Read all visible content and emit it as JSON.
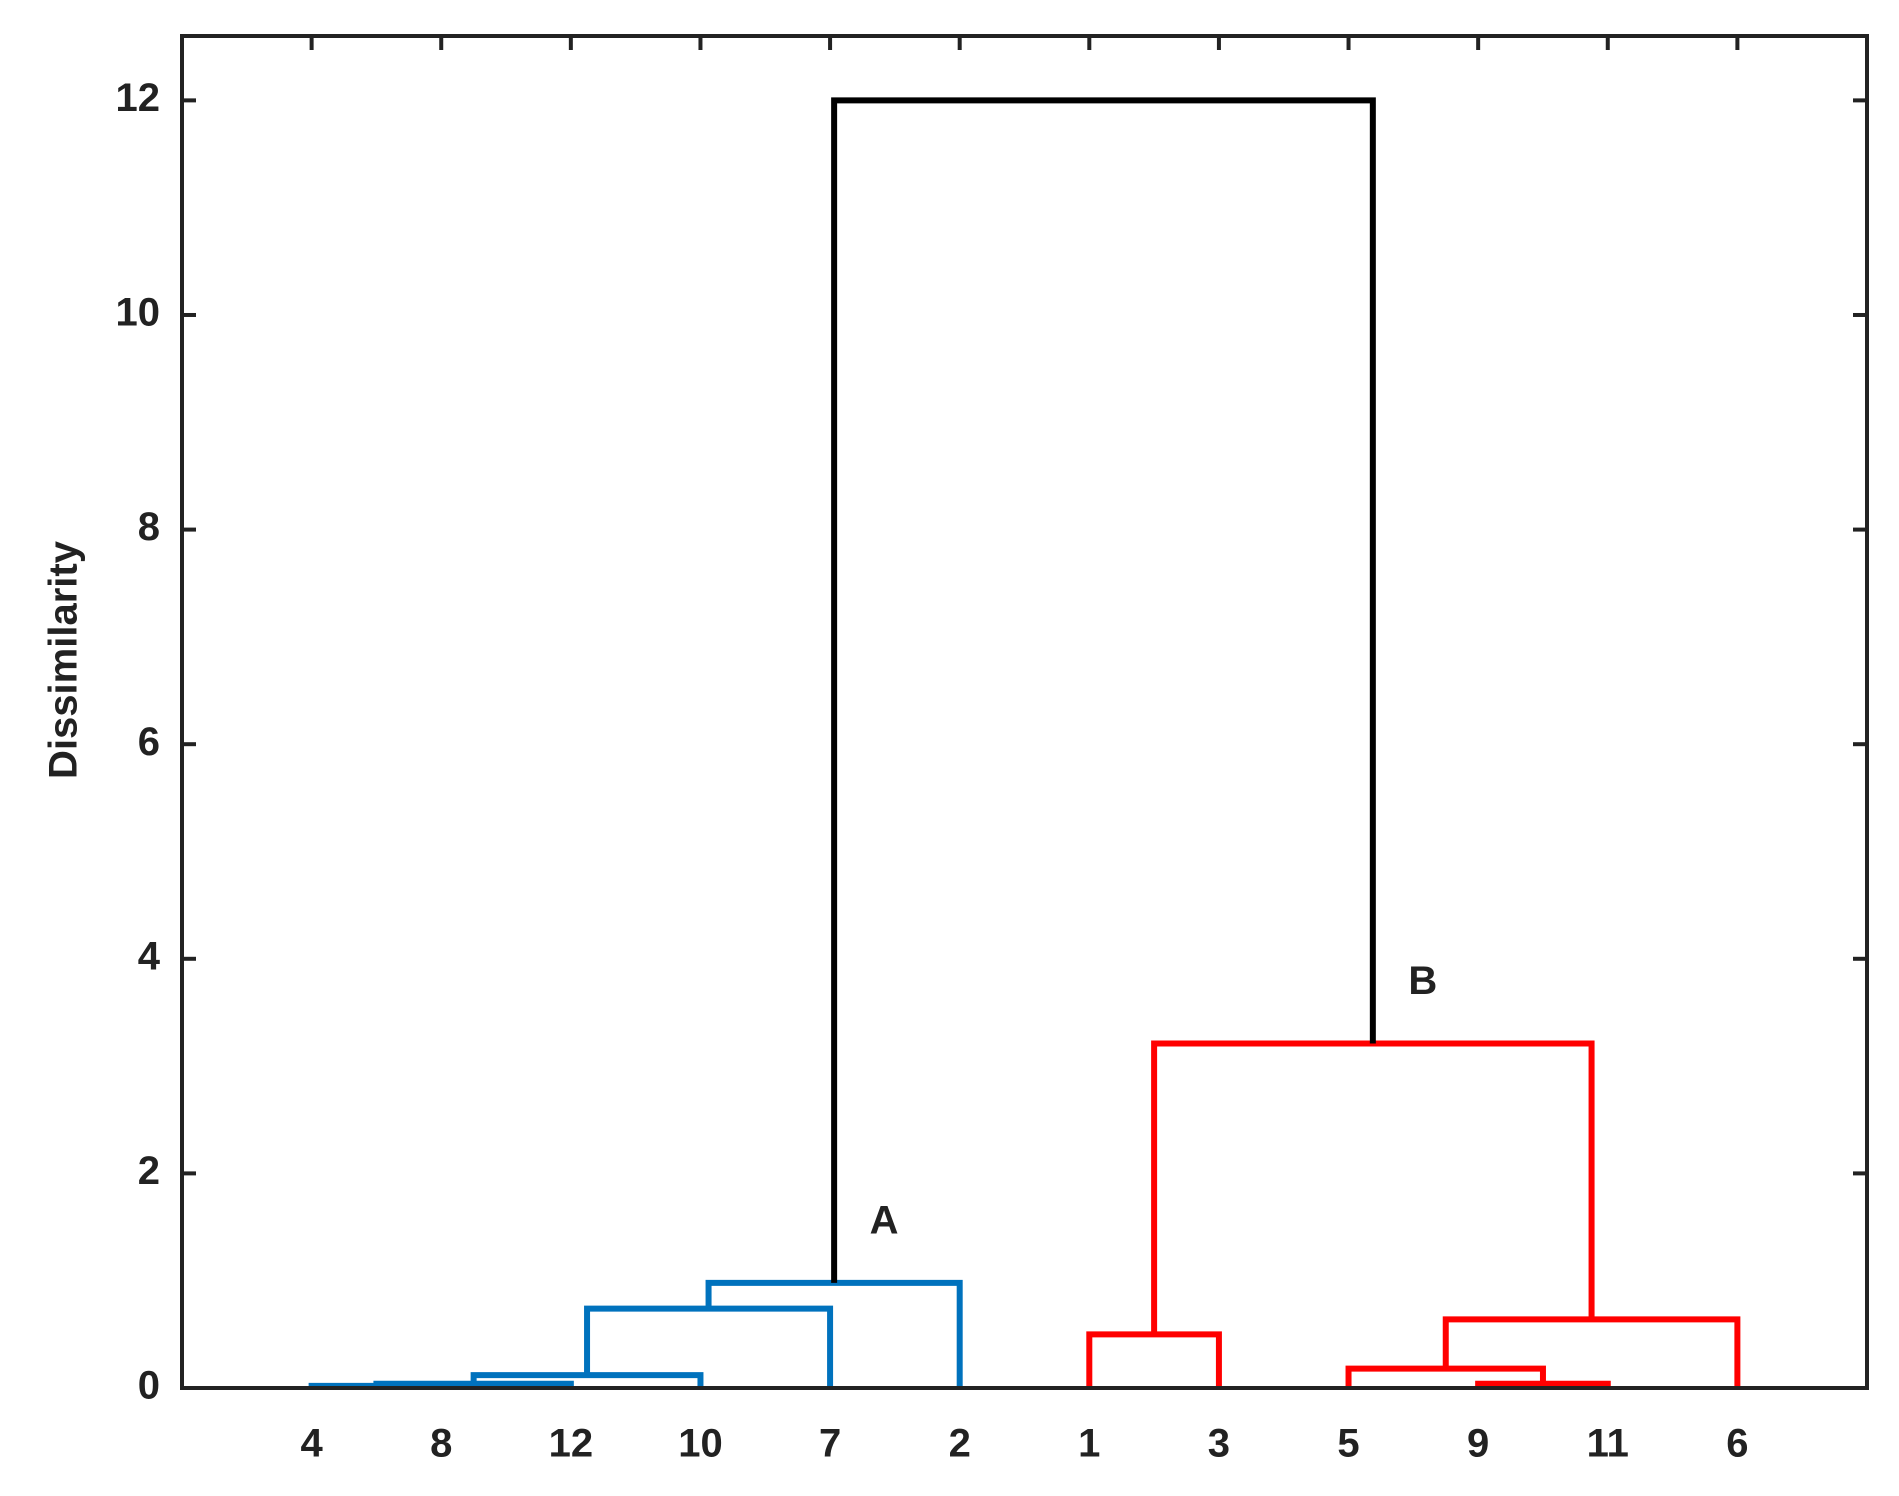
{
  "chart_data": {
    "type": "dendrogram",
    "ylabel": "Dissimilarity",
    "categories": [
      "4",
      "8",
      "12",
      "10",
      "7",
      "2",
      "1",
      "3",
      "5",
      "9",
      "11",
      "6"
    ],
    "links": [
      {
        "children": [
          0,
          1
        ],
        "height": 0.02,
        "color": "#0072bd"
      },
      {
        "children": [
          12,
          2
        ],
        "height": 0.04,
        "color": "#0072bd"
      },
      {
        "children": [
          13,
          3
        ],
        "height": 0.12,
        "color": "#0072bd"
      },
      {
        "children": [
          14,
          4
        ],
        "height": 0.74,
        "color": "#0072bd"
      },
      {
        "children": [
          15,
          5
        ],
        "height": 0.98,
        "color": "#0072bd"
      },
      {
        "children": [
          6,
          7
        ],
        "height": 0.5,
        "color": "#ff0000"
      },
      {
        "children": [
          9,
          10
        ],
        "height": 0.04,
        "color": "#ff0000"
      },
      {
        "children": [
          8,
          18
        ],
        "height": 0.18,
        "color": "#ff0000"
      },
      {
        "children": [
          19,
          11
        ],
        "height": 0.64,
        "color": "#ff0000"
      },
      {
        "children": [
          17,
          20
        ],
        "height": 3.21,
        "color": "#ff0000"
      },
      {
        "children": [
          16,
          21
        ],
        "height": 12,
        "color": "#000000"
      }
    ],
    "annotations": [
      "A",
      "B"
    ],
    "ylim": [
      0,
      12.6
    ],
    "yticks": [
      0,
      2,
      4,
      6,
      8,
      10,
      12
    ]
  }
}
